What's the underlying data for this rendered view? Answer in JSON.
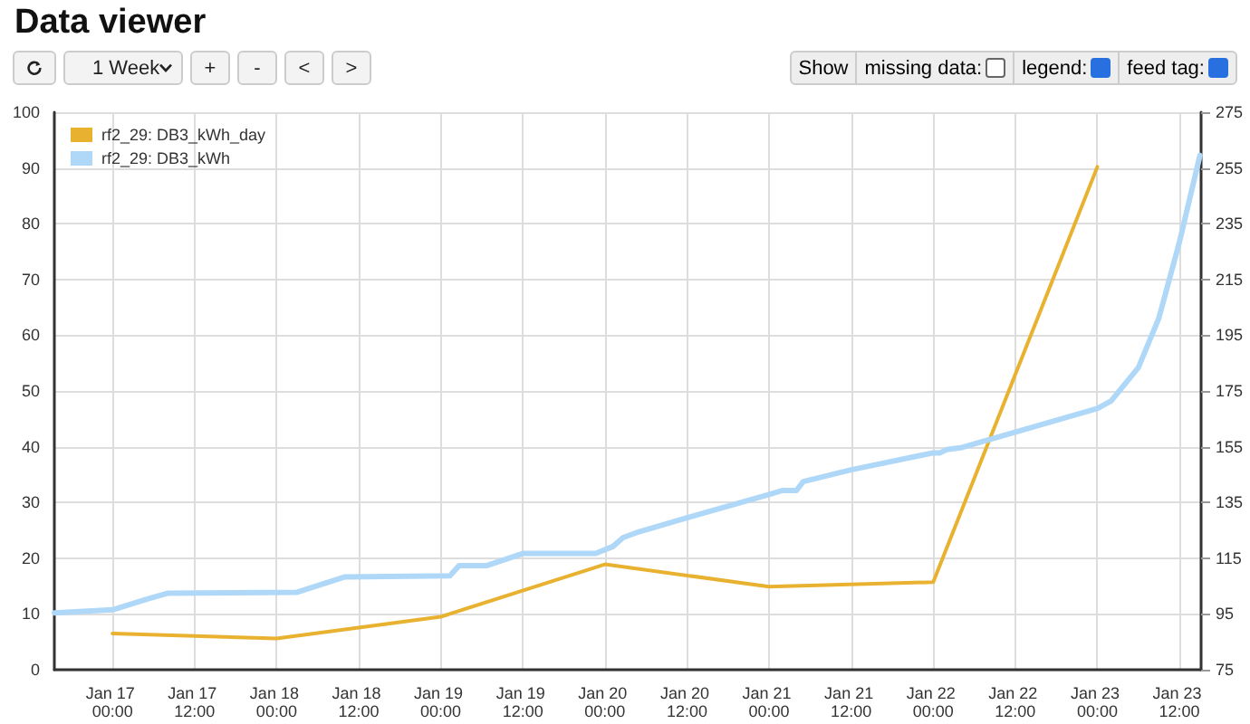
{
  "chart_data": {
    "type": "line",
    "title": "Data viewer",
    "annotations": [
      "1 Week",
      "+",
      "-",
      "<",
      ">",
      "Show",
      "missing data:",
      "legend:",
      "feed tag:"
    ],
    "xlim": [
      "--01-16T15:30",
      "--01-23T15:10"
    ],
    "xticks": [
      {
        "value": "--01-17T00:00",
        "label": "Jan 17 00:00"
      },
      {
        "value": "--01-17T12:00",
        "label": "Jan 17 12:00"
      },
      {
        "value": "--01-18T00:00",
        "label": "Jan 18 00:00"
      },
      {
        "value": "--01-18T12:00",
        "label": "Jan 18 12:00"
      },
      {
        "value": "--01-19T00:00",
        "label": "Jan 19 00:00"
      },
      {
        "value": "--01-19T12:00",
        "label": "Jan 19 12:00"
      },
      {
        "value": "--01-20T00:00",
        "label": "Jan 20 00:00"
      },
      {
        "value": "--01-20T12:00",
        "label": "Jan 20 12:00"
      },
      {
        "value": "--01-21T00:00",
        "label": "Jan 21 00:00"
      },
      {
        "value": "--01-21T12:00",
        "label": "Jan 21 12:00"
      },
      {
        "value": "--01-22T00:00",
        "label": "Jan 22 00:00"
      },
      {
        "value": "--01-22T12:00",
        "label": "Jan 22 12:00"
      },
      {
        "value": "--01-23T00:00",
        "label": "Jan 23 00:00"
      },
      {
        "value": "--01-23T12:00",
        "label": "Jan 23 12:00"
      }
    ],
    "ylim": [
      0,
      100
    ],
    "yticks": [
      0,
      10,
      20,
      30,
      40,
      50,
      60,
      70,
      80,
      90,
      100
    ],
    "y2lim": [
      75,
      275
    ],
    "y2ticks": [
      75,
      95,
      115,
      135,
      155,
      175,
      195,
      215,
      235,
      255,
      275
    ],
    "grid": true,
    "legend": "top left",
    "marker": "none",
    "line_style": "solid",
    "series": [
      {
        "name": "rf2_29: DB3_kWh_day",
        "color": "#e8b230",
        "x": [
          "--01-17T00:00",
          "--01-18T00:00",
          "--01-19T00:00",
          "--01-20T00:00",
          "--01-21T00:00",
          "--01-22T00:00",
          "--01-23T00:00"
        ],
        "values": [
          6.5,
          5.6,
          9.5,
          18.9,
          14.9,
          15.7,
          90.2
        ]
      },
      {
        "name": "rf2_29: DB3_kWh",
        "color": "#afd8f8",
        "axis": "y2",
        "x": [
          "--01-16T15:30",
          "--01-17T00:00",
          "--01-17T05:00",
          "--01-17T08:00",
          "--01-18T03:00",
          "--01-18T10:00",
          "--01-19T01:20",
          "--01-19T02:40",
          "--01-19T06:40",
          "--01-19T12:00",
          "--01-19T22:40",
          "--01-20T01:10",
          "--01-20T02:40",
          "--01-20T05:00",
          "--01-20T12:00",
          "--01-21T00:00",
          "--01-21T02:00",
          "--01-21T04:00",
          "--01-21T05:00",
          "--01-21T12:00",
          "--01-22T00:00",
          "--01-22T01:00",
          "--01-22T02:00",
          "--01-22T04:00",
          "--01-23T00:00",
          "--01-23T02:00",
          "--01-23T06:00",
          "--01-23T09:00",
          "--01-23T12:00",
          "--01-23T15:00"
        ],
        "values": [
          95.4,
          96.5,
          100.3,
          102.4,
          102.8,
          108.3,
          108.7,
          112.3,
          112.3,
          116.7,
          116.7,
          119.2,
          122.4,
          124.5,
          129.5,
          137.9,
          139.3,
          139.3,
          142.5,
          146.7,
          152.8,
          152.8,
          154,
          154.6,
          168.7,
          171.4,
          183.4,
          201.2,
          228.4,
          259.5
        ]
      }
    ]
  }
}
